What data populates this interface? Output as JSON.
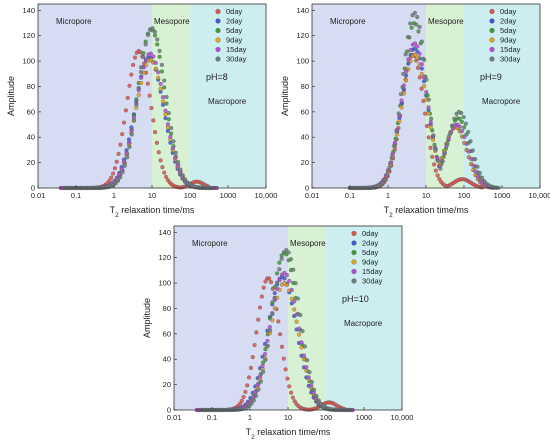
{
  "region_colors": {
    "micro": "#d6dcf2",
    "meso": "#d8f0d4",
    "macro": "#cdeef1"
  },
  "series_colors": [
    "#d9534f",
    "#3b5bd6",
    "#3f9a36",
    "#e0a020",
    "#b44dd6",
    "#6a7f7a"
  ],
  "chart_data": [
    {
      "type": "scatter",
      "xscale": "log",
      "xlim": [
        0.01,
        10000
      ],
      "ylim": [
        0,
        145
      ],
      "xticks": [
        "0.01",
        "0.1",
        "1",
        "10",
        "100",
        "1000",
        "10,000"
      ],
      "yticks": [
        "0",
        "20",
        "40",
        "60",
        "80",
        "100",
        "120",
        "140"
      ],
      "xlabel_main": "T",
      "xlabel_sub": "2",
      "xlabel_rest": " relaxation time/ms",
      "ylabel": "Amplitude",
      "ph_label": "pH=8",
      "region_labels": {
        "micro": "Micropore",
        "meso": "Mesopore",
        "macro": "Macropore"
      },
      "regions": {
        "micro_end": 10,
        "meso_end": 100
      },
      "legend_position": "top-right",
      "legend": [
        "0day",
        "2day",
        "5day",
        "9day",
        "15day",
        "30day"
      ],
      "series": [
        {
          "name": "0day",
          "peaks": [
            [
              4.5,
              108,
              0.32
            ],
            [
              150,
              5,
              0.18
            ]
          ],
          "range": [
            0.25,
            300
          ]
        },
        {
          "name": "2day",
          "peaks": [
            [
              8.5,
              103,
              0.38
            ]
          ],
          "range": [
            0.04,
            500
          ]
        },
        {
          "name": "5day",
          "peaks": [
            [
              9.5,
              125,
              0.36
            ]
          ],
          "range": [
            0.05,
            400
          ]
        },
        {
          "name": "9day",
          "peaks": [
            [
              9,
              101,
              0.38
            ]
          ],
          "range": [
            0.04,
            500
          ]
        },
        {
          "name": "15day",
          "peaks": [
            [
              9,
              106,
              0.38
            ]
          ],
          "range": [
            0.04,
            500
          ]
        },
        {
          "name": "30day",
          "peaks": [
            [
              10,
              126,
              0.36
            ]
          ],
          "range": [
            0.05,
            400
          ]
        }
      ]
    },
    {
      "type": "scatter",
      "xscale": "log",
      "xlim": [
        0.01,
        10000
      ],
      "ylim": [
        0,
        145
      ],
      "xticks": [
        "0.01",
        "0.1",
        "1",
        "10",
        "100",
        "1000",
        "10,000"
      ],
      "yticks": [
        "0",
        "20",
        "40",
        "60",
        "80",
        "100",
        "120",
        "140"
      ],
      "xlabel_main": "T",
      "xlabel_sub": "2",
      "xlabel_rest": " relaxation time/ms",
      "ylabel": "Amplitude",
      "ph_label": "pH=9",
      "region_labels": {
        "micro": "Micropore",
        "meso": "Mesopore",
        "macro": "Macropore"
      },
      "regions": {
        "micro_end": 10,
        "meso_end": 100
      },
      "legend_position": "top-right",
      "legend": [
        "0day",
        "2day",
        "5day",
        "9day",
        "15day",
        "30day"
      ],
      "series": [
        {
          "name": "0day",
          "peaks": [
            [
              4.5,
              105,
              0.3
            ],
            [
              90,
              7,
              0.22
            ]
          ],
          "range": [
            0.3,
            300
          ]
        },
        {
          "name": "2day",
          "peaks": [
            [
              5,
              110,
              0.34
            ],
            [
              60,
              48,
              0.3
            ]
          ],
          "range": [
            0.1,
            600
          ]
        },
        {
          "name": "5day",
          "peaks": [
            [
              5,
              130,
              0.32
            ],
            [
              70,
              55,
              0.3
            ]
          ],
          "range": [
            0.1,
            700
          ]
        },
        {
          "name": "9day",
          "peaks": [
            [
              5,
              105,
              0.34
            ],
            [
              60,
              48,
              0.3
            ]
          ],
          "range": [
            0.1,
            600
          ]
        },
        {
          "name": "15day",
          "peaks": [
            [
              5,
              114,
              0.34
            ],
            [
              65,
              50,
              0.3
            ]
          ],
          "range": [
            0.1,
            600
          ]
        },
        {
          "name": "30day",
          "peaks": [
            [
              5,
              138,
              0.32
            ],
            [
              75,
              60,
              0.3
            ]
          ],
          "range": [
            0.1,
            800
          ]
        }
      ]
    },
    {
      "type": "scatter",
      "xscale": "log",
      "xlim": [
        0.01,
        10000
      ],
      "ylim": [
        0,
        145
      ],
      "xticks": [
        "0.01",
        "0.1",
        "1",
        "10",
        "100",
        "1000",
        "10,000"
      ],
      "yticks": [
        "0",
        "20",
        "40",
        "60",
        "80",
        "100",
        "120",
        "140"
      ],
      "xlabel_main": "T",
      "xlabel_sub": "2",
      "xlabel_rest": " relaxation time/ms",
      "ylabel": "Amplitude",
      "ph_label": "pH=10",
      "region_labels": {
        "micro": "Micropore",
        "meso": "Mesopore",
        "macro": "Macropore"
      },
      "regions": {
        "micro_end": 10,
        "meso_end": 100
      },
      "legend_position": "top-right",
      "legend": [
        "0day",
        "2day",
        "5day",
        "9day",
        "15day",
        "30day"
      ],
      "series": [
        {
          "name": "0day",
          "peaks": [
            [
              3,
              104,
              0.3
            ],
            [
              120,
              6,
              0.2
            ]
          ],
          "range": [
            0.25,
            300
          ]
        },
        {
          "name": "2day",
          "peaks": [
            [
              7,
              105,
              0.38
            ]
          ],
          "range": [
            0.04,
            500
          ]
        },
        {
          "name": "5day",
          "peaks": [
            [
              8,
              124,
              0.36
            ]
          ],
          "range": [
            0.05,
            400
          ]
        },
        {
          "name": "9day",
          "peaks": [
            [
              8,
              100,
              0.38
            ]
          ],
          "range": [
            0.04,
            500
          ]
        },
        {
          "name": "15day",
          "peaks": [
            [
              8,
              108,
              0.38
            ]
          ],
          "range": [
            0.04,
            500
          ]
        },
        {
          "name": "30day",
          "peaks": [
            [
              9,
              126,
              0.36
            ]
          ],
          "range": [
            0.05,
            400
          ]
        }
      ]
    }
  ]
}
